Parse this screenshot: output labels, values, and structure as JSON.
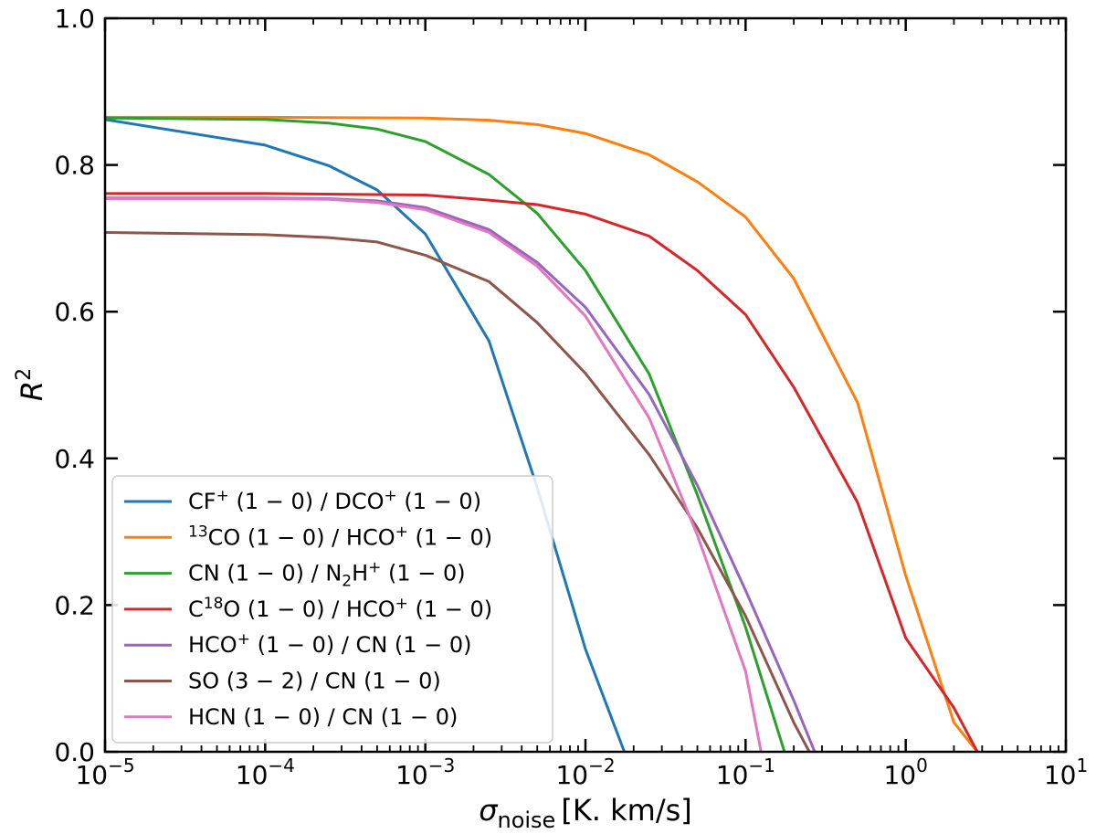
{
  "chart_data": {
    "type": "line",
    "xscale": "log",
    "xlim": [
      1e-05,
      10
    ],
    "ylim": [
      0.0,
      1.0
    ],
    "x_ticks": [
      {
        "value": 1e-05,
        "base": "10",
        "exp": "−5"
      },
      {
        "value": 0.0001,
        "base": "10",
        "exp": "−4"
      },
      {
        "value": 0.001,
        "base": "10",
        "exp": "−3"
      },
      {
        "value": 0.01,
        "base": "10",
        "exp": "−2"
      },
      {
        "value": 0.1,
        "base": "10",
        "exp": "−1"
      },
      {
        "value": 1,
        "base": "10",
        "exp": "0"
      },
      {
        "value": 10,
        "base": "10",
        "exp": "1"
      }
    ],
    "y_ticks": [
      {
        "value": 0.0,
        "label": "0.0"
      },
      {
        "value": 0.2,
        "label": "0.2"
      },
      {
        "value": 0.4,
        "label": "0.4"
      },
      {
        "value": 0.6,
        "label": "0.6"
      },
      {
        "value": 0.8,
        "label": "0.8"
      },
      {
        "value": 1.0,
        "label": "1.0"
      }
    ],
    "xlabel": {
      "symbol": "σ",
      "subscript": "noise",
      "units": "[K. km/s]"
    },
    "ylabel": {
      "symbol": "R",
      "superscript": "2"
    },
    "legend_position": "lower-left",
    "series": [
      {
        "name": "CF⁺ (1 − 0) / DCO⁺ (1 − 0)",
        "color": "#1f77b4",
        "legend_parts": [
          [
            "CF",
            "n"
          ],
          [
            "+",
            "sup"
          ],
          [
            " (1 − 0) / DCO",
            "n"
          ],
          [
            "+",
            "sup"
          ],
          [
            " (1 − 0)",
            "n"
          ]
        ],
        "x": [
          1e-05,
          0.0001,
          0.00025,
          0.0005,
          0.001,
          0.0025,
          0.005,
          0.01,
          0.0175
        ],
        "y": [
          0.862,
          0.827,
          0.799,
          0.766,
          0.706,
          0.56,
          0.36,
          0.14,
          0.0
        ]
      },
      {
        "name": "¹³CO (1 − 0) / HCO⁺ (1 − 0)",
        "color": "#ff7f0e",
        "legend_parts": [
          [
            "13",
            "sup"
          ],
          [
            "CO (1 − 0) / HCO",
            "n"
          ],
          [
            "+",
            "sup"
          ],
          [
            " (1 − 0)",
            "n"
          ]
        ],
        "x": [
          1e-05,
          0.0001,
          0.001,
          0.0025,
          0.005,
          0.01,
          0.025,
          0.05,
          0.1,
          0.2,
          0.5,
          1.0,
          2.0,
          2.8
        ],
        "y": [
          0.865,
          0.865,
          0.864,
          0.861,
          0.855,
          0.843,
          0.814,
          0.777,
          0.729,
          0.645,
          0.476,
          0.24,
          0.04,
          0.0
        ]
      },
      {
        "name": "CN (1 − 0) / N₂H⁺ (1 − 0)",
        "color": "#2ca02c",
        "legend_parts": [
          [
            "CN (1 − 0) / N",
            "n"
          ],
          [
            "2",
            "sub"
          ],
          [
            "H",
            "n"
          ],
          [
            "+",
            "sup"
          ],
          [
            " (1 − 0)",
            "n"
          ]
        ],
        "x": [
          1e-05,
          0.0001,
          0.00025,
          0.0005,
          0.001,
          0.0025,
          0.005,
          0.01,
          0.025,
          0.05,
          0.1,
          0.175
        ],
        "y": [
          0.864,
          0.862,
          0.857,
          0.849,
          0.832,
          0.787,
          0.734,
          0.656,
          0.515,
          0.35,
          0.17,
          0.0
        ]
      },
      {
        "name": "C¹⁸O (1 − 0) / HCO⁺ (1 − 0)",
        "color": "#d62728",
        "legend_parts": [
          [
            "C",
            "n"
          ],
          [
            "18",
            "sup"
          ],
          [
            "O (1 − 0) / HCO",
            "n"
          ],
          [
            "+",
            "sup"
          ],
          [
            " (1 − 0)",
            "n"
          ]
        ],
        "x": [
          1e-05,
          0.0001,
          0.001,
          0.0025,
          0.005,
          0.01,
          0.025,
          0.05,
          0.1,
          0.2,
          0.5,
          1.0,
          2.0,
          2.8
        ],
        "y": [
          0.761,
          0.761,
          0.759,
          0.752,
          0.746,
          0.733,
          0.703,
          0.656,
          0.596,
          0.497,
          0.34,
          0.155,
          0.06,
          0.0
        ]
      },
      {
        "name": "HCO⁺ (1 − 0) / CN (1 − 0)",
        "color": "#9467bd",
        "legend_parts": [
          [
            "HCO",
            "n"
          ],
          [
            "+",
            "sup"
          ],
          [
            " (1 − 0) / CN (1 − 0)",
            "n"
          ]
        ],
        "x": [
          1e-05,
          0.0001,
          0.00025,
          0.0005,
          0.001,
          0.0025,
          0.005,
          0.01,
          0.025,
          0.05,
          0.1,
          0.2,
          0.27
        ],
        "y": [
          0.755,
          0.755,
          0.754,
          0.751,
          0.742,
          0.712,
          0.667,
          0.606,
          0.487,
          0.363,
          0.22,
          0.07,
          0.0
        ]
      },
      {
        "name": "SO (3 − 2) / CN (1 − 0)",
        "color": "#8c564b",
        "legend_parts": [
          [
            "SO (3 − 2) / CN (1 − 0)",
            "n"
          ]
        ],
        "x": [
          1e-05,
          0.0001,
          0.00025,
          0.0005,
          0.001,
          0.0025,
          0.005,
          0.01,
          0.025,
          0.05,
          0.1,
          0.2,
          0.25
        ],
        "y": [
          0.708,
          0.705,
          0.701,
          0.695,
          0.677,
          0.641,
          0.585,
          0.516,
          0.405,
          0.305,
          0.185,
          0.04,
          0.0
        ]
      },
      {
        "name": "HCN (1 − 0) / CN (1 − 0)",
        "color": "#e377c2",
        "legend_parts": [
          [
            "HCN (1 − 0) / CN (1 − 0)",
            "n"
          ]
        ],
        "x": [
          1e-05,
          0.0001,
          0.00025,
          0.0005,
          0.001,
          0.0025,
          0.005,
          0.01,
          0.025,
          0.05,
          0.1,
          0.125
        ],
        "y": [
          0.754,
          0.754,
          0.753,
          0.749,
          0.739,
          0.708,
          0.662,
          0.594,
          0.455,
          0.295,
          0.11,
          0.0
        ]
      }
    ]
  }
}
